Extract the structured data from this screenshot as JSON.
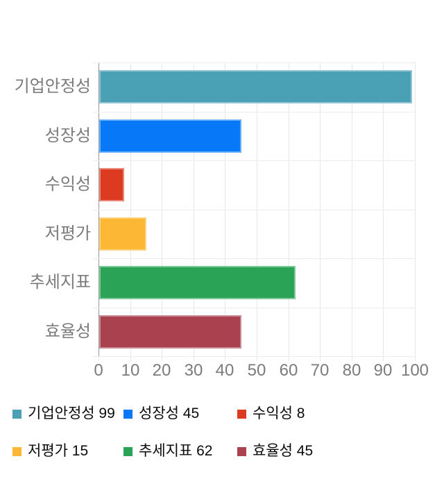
{
  "chart_data": {
    "type": "bar",
    "orientation": "horizontal",
    "title": "",
    "categories": [
      "기업안정성",
      "성장성",
      "수익성",
      "저평가",
      "추세지표",
      "효율성"
    ],
    "values": [
      99,
      45,
      8,
      15,
      62,
      45
    ],
    "colors": [
      "#4AA0B5",
      "#0678F8",
      "#DC3B22",
      "#FCB735",
      "#2AA356",
      "#A9414F"
    ],
    "xlim": [
      0,
      100
    ],
    "x_ticks": [
      0,
      10,
      20,
      30,
      40,
      50,
      60,
      70,
      80,
      90,
      100
    ],
    "grid": true,
    "legend_position": "bottom"
  },
  "legend": {
    "items": [
      {
        "label": "기업안정성 99",
        "color": "#4AA0B5"
      },
      {
        "label": "성장성 45",
        "color": "#0678F8"
      },
      {
        "label": "수익성 8",
        "color": "#DC3B22"
      },
      {
        "label": "저평가 15",
        "color": "#FCB735"
      },
      {
        "label": "추세지표 62",
        "color": "#2AA356"
      },
      {
        "label": "효율성 45",
        "color": "#A9414F"
      }
    ]
  }
}
